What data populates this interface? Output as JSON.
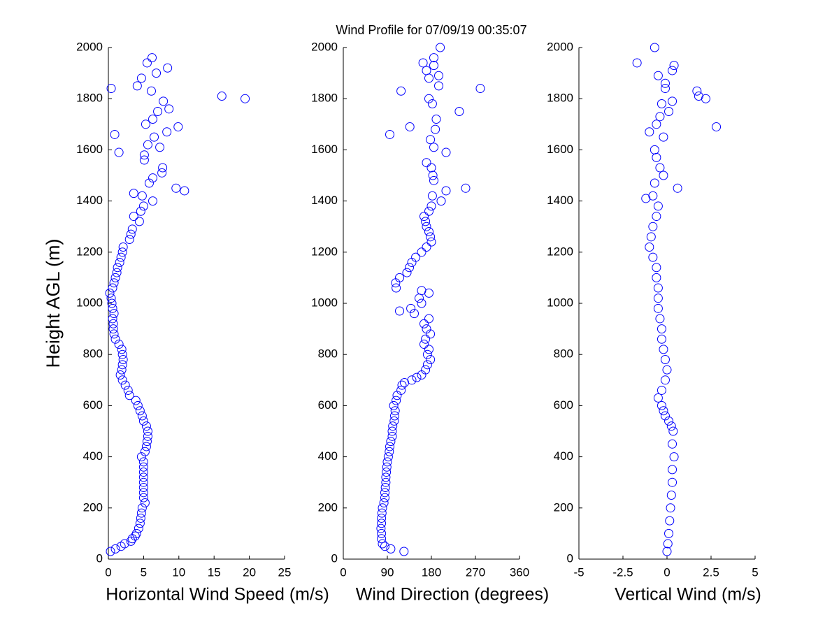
{
  "chart_data": [
    {
      "type": "scatter",
      "title": "Wind Profile for  07/09/19 00:35:07",
      "ylabel": "Height AGL (m)",
      "xlabel": "Horizontal Wind Speed (m/s)",
      "color": "#0000ff",
      "marker": "circle",
      "xlim": [
        0,
        25
      ],
      "xticks": [
        0,
        5,
        10,
        15,
        20,
        25
      ],
      "ylim": [
        0,
        2000
      ],
      "yticks": [
        0,
        200,
        400,
        600,
        800,
        1000,
        1200,
        1400,
        1600,
        1800,
        2000
      ],
      "y": [
        30,
        40,
        50,
        60,
        70,
        80,
        90,
        100,
        120,
        140,
        160,
        180,
        200,
        220,
        240,
        260,
        280,
        300,
        320,
        340,
        360,
        380,
        400,
        420,
        440,
        460,
        480,
        500,
        520,
        540,
        560,
        580,
        600,
        620,
        640,
        660,
        680,
        700,
        720,
        740,
        760,
        780,
        800,
        820,
        840,
        860,
        880,
        900,
        920,
        940,
        960,
        980,
        1000,
        1020,
        1040,
        1060,
        1080,
        1100,
        1120,
        1140,
        1160,
        1180,
        1200,
        1220,
        1250,
        1270,
        1290,
        1320,
        1340,
        1360,
        1380,
        1400,
        1420,
        1430,
        1440,
        1450,
        1470,
        1490,
        1510,
        1530,
        1560,
        1580,
        1590,
        1610,
        1620,
        1650,
        1660,
        1670,
        1690,
        1700,
        1720,
        1750,
        1760,
        1790,
        1800,
        1810,
        1830,
        1840,
        1850,
        1880,
        1900,
        1920,
        1940,
        1960
      ],
      "x": [
        0.3,
        1,
        1.8,
        2.3,
        3.2,
        3.4,
        3.8,
        4,
        4.3,
        4.5,
        4.6,
        4.7,
        4.8,
        5.2,
        5,
        5,
        5,
        5,
        5,
        5,
        5,
        5,
        4.7,
        5.2,
        5.4,
        5.5,
        5.6,
        5.6,
        5.4,
        5,
        4.8,
        4.5,
        4.2,
        3.9,
        3,
        2.8,
        2.4,
        2,
        1.7,
        1.9,
        2,
        2.1,
        2,
        1.9,
        1.5,
        1,
        0.8,
        0.7,
        0.7,
        0.6,
        0.8,
        0.6,
        0.5,
        0.4,
        0.2,
        0.6,
        0.8,
        1,
        1.2,
        1.3,
        1.6,
        1.8,
        2,
        2.1,
        3,
        3.2,
        3.4,
        4.4,
        3.6,
        4.6,
        5,
        6.3,
        4.8,
        3.6,
        10.8,
        9.6,
        5.8,
        6.3,
        7.6,
        7.7,
        5.1,
        5.1,
        1.5,
        7.3,
        5.6,
        6.5,
        0.9,
        8.3,
        9.9,
        5.3,
        6.3,
        7,
        8.6,
        7.8,
        19.4,
        16.1,
        6.1,
        0.4,
        4.1,
        4.7,
        6.8,
        8.4,
        5.5,
        6.2
      ]
    },
    {
      "type": "scatter",
      "xlabel": "Wind Direction (degrees)",
      "color": "#0000ff",
      "marker": "circle",
      "xlim": [
        0,
        360
      ],
      "xticks": [
        0,
        90,
        180,
        270,
        360
      ],
      "ylim": [
        0,
        2000
      ],
      "yticks": [
        0,
        200,
        400,
        600,
        800,
        1000,
        1200,
        1400,
        1600,
        1800,
        2000
      ],
      "y": [
        30,
        40,
        50,
        60,
        80,
        100,
        120,
        140,
        160,
        180,
        200,
        220,
        240,
        260,
        280,
        300,
        320,
        340,
        360,
        380,
        400,
        420,
        440,
        460,
        480,
        500,
        520,
        540,
        560,
        580,
        600,
        620,
        640,
        660,
        680,
        690,
        700,
        710,
        720,
        740,
        760,
        780,
        800,
        820,
        840,
        860,
        880,
        900,
        920,
        940,
        960,
        970,
        980,
        1000,
        1020,
        1040,
        1050,
        1060,
        1080,
        1100,
        1120,
        1140,
        1160,
        1180,
        1200,
        1220,
        1240,
        1260,
        1280,
        1300,
        1320,
        1340,
        1360,
        1380,
        1400,
        1420,
        1440,
        1450,
        1480,
        1500,
        1530,
        1550,
        1590,
        1610,
        1640,
        1660,
        1680,
        1690,
        1720,
        1750,
        1780,
        1800,
        1830,
        1840,
        1850,
        1880,
        1890,
        1910,
        1930,
        1940,
        1960,
        2000
      ],
      "x": [
        124,
        97,
        85,
        80,
        78,
        78,
        77,
        78,
        78,
        79,
        80,
        83,
        85,
        85,
        86,
        87,
        87,
        88,
        89,
        90,
        92,
        94,
        95,
        97,
        100,
        100,
        101,
        104,
        105,
        106,
        103,
        108,
        110,
        118,
        120,
        125,
        140,
        150,
        160,
        168,
        172,
        178,
        172,
        175,
        165,
        168,
        178,
        170,
        165,
        175,
        145,
        115,
        138,
        160,
        155,
        175,
        160,
        108,
        107,
        115,
        130,
        135,
        140,
        148,
        160,
        170,
        180,
        178,
        175,
        170,
        168,
        165,
        175,
        180,
        200,
        182,
        210,
        250,
        185,
        183,
        180,
        170,
        210,
        185,
        178,
        95,
        188,
        136,
        190,
        237,
        182,
        175,
        118,
        280,
        195,
        175,
        195,
        170,
        185,
        163,
        185,
        198
      ]
    },
    {
      "type": "scatter",
      "xlabel": "Vertical Wind (m/s)",
      "color": "#0000ff",
      "marker": "circle",
      "xlim": [
        -5,
        5
      ],
      "xticks": [
        -5,
        -2.5,
        0,
        2.5,
        5
      ],
      "ylim": [
        0,
        2000
      ],
      "yticks": [
        0,
        200,
        400,
        600,
        800,
        1000,
        1200,
        1400,
        1600,
        1800,
        2000
      ],
      "y": [
        30,
        60,
        100,
        150,
        200,
        250,
        300,
        350,
        400,
        450,
        500,
        520,
        540,
        560,
        580,
        600,
        630,
        660,
        700,
        740,
        780,
        820,
        860,
        900,
        940,
        980,
        1020,
        1060,
        1100,
        1140,
        1180,
        1220,
        1260,
        1300,
        1340,
        1380,
        1410,
        1420,
        1450,
        1470,
        1500,
        1530,
        1570,
        1600,
        1650,
        1670,
        1690,
        1700,
        1730,
        1750,
        1780,
        1790,
        1800,
        1810,
        1830,
        1840,
        1860,
        1890,
        1910,
        1930,
        1940,
        2000
      ],
      "x": [
        0,
        0.05,
        0.1,
        0.15,
        0.2,
        0.25,
        0.3,
        0.3,
        0.4,
        0.3,
        0.35,
        0.25,
        0.1,
        -0.1,
        -0.2,
        -0.3,
        -0.5,
        -0.3,
        -0.1,
        0,
        -0.1,
        -0.2,
        -0.3,
        -0.3,
        -0.4,
        -0.5,
        -0.5,
        -0.5,
        -0.6,
        -0.6,
        -0.8,
        -1,
        -0.9,
        -0.8,
        -0.6,
        -0.5,
        -1.2,
        -0.8,
        0.6,
        -0.7,
        -0.2,
        -0.4,
        -0.6,
        -0.7,
        -0.2,
        -1,
        2.8,
        -0.6,
        -0.4,
        0.1,
        -0.3,
        0.3,
        2.2,
        1.8,
        1.7,
        -0.1,
        -0.1,
        -0.5,
        0.3,
        0.4,
        -1.7,
        -0.7
      ]
    }
  ]
}
